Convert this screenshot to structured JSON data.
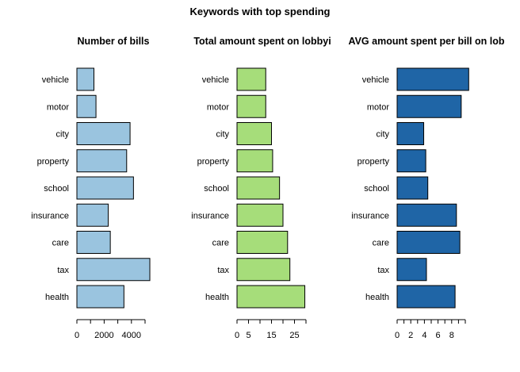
{
  "title": "Keywords with top spending",
  "chart_data": [
    {
      "type": "bar",
      "orientation": "horizontal",
      "title": "Number of bills",
      "categories": [
        "health",
        "tax",
        "care",
        "insurance",
        "school",
        "property",
        "city",
        "motor",
        "vehicle"
      ],
      "values": [
        3450,
        5350,
        2450,
        2300,
        4150,
        3650,
        3900,
        1400,
        1250
      ],
      "xlim": [
        0,
        5000
      ],
      "xticks": [
        0,
        1000,
        2000,
        3000,
        4000,
        5000
      ],
      "xtick_labels": [
        "0",
        "",
        "2000",
        "",
        "4000",
        ""
      ],
      "color": "#9ac4df",
      "grid": false
    },
    {
      "type": "bar",
      "orientation": "horizontal",
      "title": "Total amount spent on lobbyi",
      "categories": [
        "health",
        "tax",
        "care",
        "insurance",
        "school",
        "property",
        "city",
        "motor",
        "vehicle"
      ],
      "values": [
        29.5,
        23,
        22,
        20,
        18.5,
        15.5,
        15,
        12.5,
        12.5
      ],
      "xlim": [
        0,
        30
      ],
      "xticks": [
        0,
        5,
        10,
        15,
        20,
        25,
        30
      ],
      "xtick_labels": [
        "0",
        "5",
        "",
        "15",
        "",
        "25",
        ""
      ],
      "color": "#a6dd7a",
      "grid": false
    },
    {
      "type": "bar",
      "orientation": "horizontal",
      "title": "AVG amount spent per bill on lob",
      "categories": [
        "health",
        "tax",
        "care",
        "insurance",
        "school",
        "property",
        "city",
        "motor",
        "vehicle"
      ],
      "values": [
        8.5,
        4.3,
        9.2,
        8.7,
        4.5,
        4.2,
        3.9,
        9.4,
        10.5
      ],
      "xlim": [
        0,
        10
      ],
      "xticks": [
        0,
        1,
        2,
        3,
        4,
        5,
        6,
        7,
        8,
        9,
        10
      ],
      "xtick_labels": [
        "0",
        "",
        "2",
        "",
        "4",
        "",
        "6",
        "",
        "8",
        "",
        ""
      ],
      "color": "#1f65a6",
      "grid": false
    }
  ]
}
